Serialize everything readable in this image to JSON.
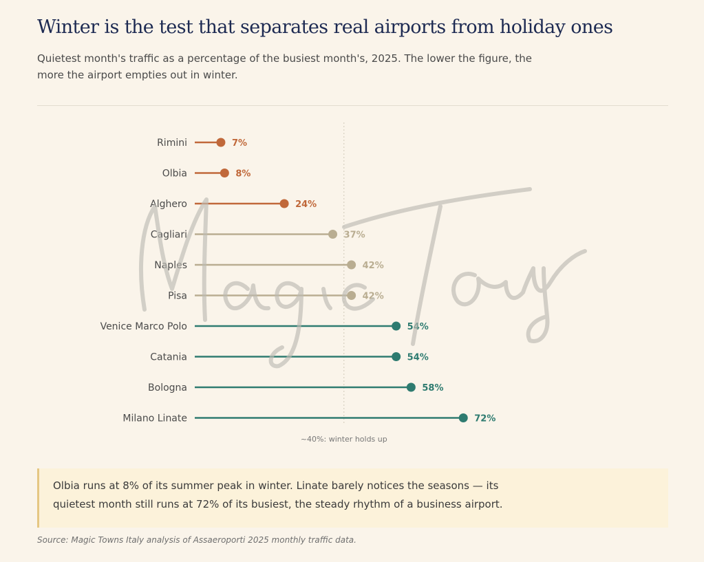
{
  "header": {
    "title": "Winter is the test that separates real airports from holiday ones",
    "subtitle": "Quietest month's traffic as a percentage of the busiest month's, 2025. The lower the figure, the more the airport empties out in winter."
  },
  "chart_data": {
    "type": "dot",
    "value_unit": "%",
    "xlim": [
      0,
      80
    ],
    "grid": false,
    "categories": [
      "Rimini",
      "Olbia",
      "Alghero",
      "Cagliari",
      "Naples",
      "Pisa",
      "Venice Marco Polo",
      "Catania",
      "Bologna",
      "Milano Linate"
    ],
    "values": [
      7,
      8,
      24,
      37,
      42,
      42,
      54,
      54,
      58,
      72
    ],
    "value_labels": [
      "7%",
      "8%",
      "24%",
      "37%",
      "42%",
      "42%",
      "54%",
      "54%",
      "58%",
      "72%"
    ],
    "point_colors": [
      "#c0683a",
      "#c0683a",
      "#c0683a",
      "#b9ad91",
      "#b9ad91",
      "#b9ad91",
      "#2e7b70",
      "#2e7b70",
      "#2e7b70",
      "#2e7b70"
    ],
    "reference_line": {
      "value": 40,
      "label": "~40%: winter holds up"
    }
  },
  "watermark": {
    "text": "MagicTowns"
  },
  "callout": {
    "text": "Olbia runs at 8% of its summer peak in winter. Linate barely notices the seasons — its quietest month still runs at 72% of its busiest, the steady rhythm of a business airport."
  },
  "source": "Source: Magic Towns Italy analysis of Assaeroporti 2025 monthly traffic data.",
  "colors": {
    "background": "#faf4ea",
    "title": "#1d2a52",
    "seasonal": "#c0683a",
    "middle": "#b9ad91",
    "steady": "#2e7b70",
    "callout_bg": "#fcf2da",
    "callout_border": "#e5c783"
  }
}
